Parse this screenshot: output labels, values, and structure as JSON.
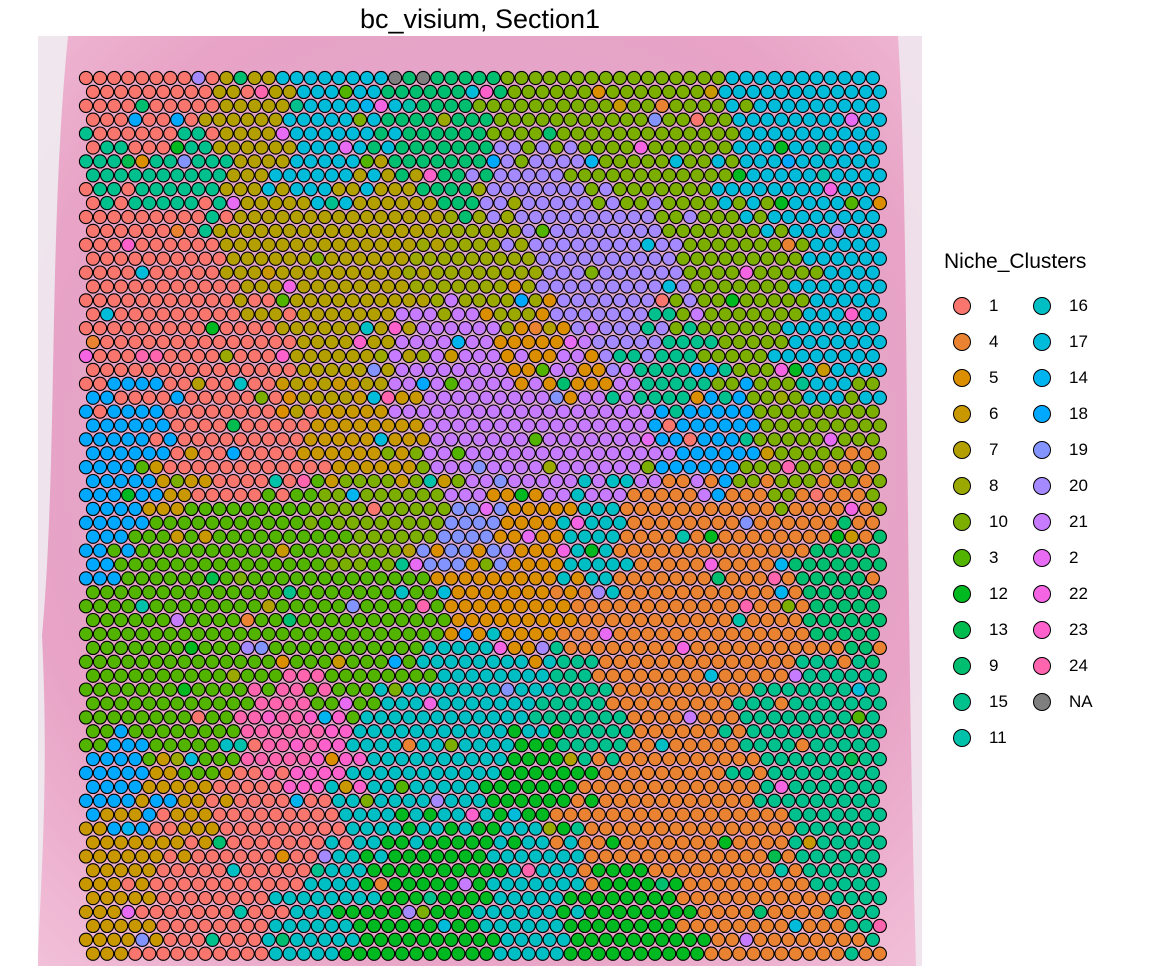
{
  "title": "bc_visium, Section1",
  "legend": {
    "title": "Niche_Clusters",
    "columns": [
      [
        {
          "label": "1",
          "color": "#F8766D"
        },
        {
          "label": "4",
          "color": "#EA8331"
        },
        {
          "label": "5",
          "color": "#DB8E00"
        },
        {
          "label": "6",
          "color": "#C99800"
        },
        {
          "label": "7",
          "color": "#B3A000"
        },
        {
          "label": "8",
          "color": "#9AA800"
        },
        {
          "label": "10",
          "color": "#7CAE00"
        },
        {
          "label": "3",
          "color": "#53B400"
        },
        {
          "label": "12",
          "color": "#00B81F"
        },
        {
          "label": "13",
          "color": "#00BB4E"
        },
        {
          "label": "9",
          "color": "#00BE70"
        },
        {
          "label": "15",
          "color": "#00C08E"
        },
        {
          "label": "11",
          "color": "#00C1AA"
        }
      ],
      [
        {
          "label": "16",
          "color": "#00BFC4"
        },
        {
          "label": "17",
          "color": "#00BBDA"
        },
        {
          "label": "14",
          "color": "#00B4EF"
        },
        {
          "label": "18",
          "color": "#00A9FF"
        },
        {
          "label": "19",
          "color": "#8494FF"
        },
        {
          "label": "20",
          "color": "#A58AFF"
        },
        {
          "label": "21",
          "color": "#C77CFF"
        },
        {
          "label": "2",
          "color": "#E76BF3"
        },
        {
          "label": "22",
          "color": "#F564E3"
        },
        {
          "label": "23",
          "color": "#FF61CC"
        },
        {
          "label": "24",
          "color": "#FF65AE"
        },
        {
          "label": "NA",
          "color": "#7F7F7F"
        }
      ]
    ]
  },
  "chart_data": {
    "type": "scatter",
    "title": "bc_visium, Section1",
    "xlabel": "",
    "ylabel": "",
    "grid": false,
    "legend_position": "right",
    "background": "H&E tissue image",
    "spot_grid": {
      "rows": 64,
      "cols": 57,
      "layout": "hexagonal"
    },
    "series_label": "Niche_Clusters",
    "regions": [
      {
        "cluster": "1",
        "cx": 0.06,
        "cy": 0.05,
        "r": 0.06
      },
      {
        "cluster": "1",
        "cx": 0.08,
        "cy": 0.2,
        "r": 0.09
      },
      {
        "cluster": "1",
        "cx": 0.05,
        "cy": 0.3,
        "r": 0.07
      },
      {
        "cluster": "1",
        "cx": 0.2,
        "cy": 0.3,
        "r": 0.08
      },
      {
        "cluster": "1",
        "cx": 0.18,
        "cy": 0.42,
        "r": 0.1
      },
      {
        "cluster": "1",
        "cx": 0.23,
        "cy": 0.86,
        "r": 0.07
      },
      {
        "cluster": "1",
        "cx": 0.12,
        "cy": 0.92,
        "r": 0.05
      },
      {
        "cluster": "15",
        "cx": 0.05,
        "cy": 0.1,
        "r": 0.05
      },
      {
        "cluster": "15",
        "cx": 0.12,
        "cy": 0.12,
        "r": 0.05
      },
      {
        "cluster": "7",
        "cx": 0.22,
        "cy": 0.05,
        "r": 0.05
      },
      {
        "cluster": "17",
        "cx": 0.3,
        "cy": 0.07,
        "r": 0.07
      },
      {
        "cluster": "9",
        "cx": 0.45,
        "cy": 0.07,
        "r": 0.07
      },
      {
        "cluster": "10",
        "cx": 0.56,
        "cy": 0.04,
        "r": 0.05
      },
      {
        "cluster": "7",
        "cx": 0.38,
        "cy": 0.14,
        "r": 0.06
      },
      {
        "cluster": "10",
        "cx": 0.72,
        "cy": 0.08,
        "r": 0.08
      },
      {
        "cluster": "17",
        "cx": 0.92,
        "cy": 0.1,
        "r": 0.1
      },
      {
        "cluster": "20",
        "cx": 0.55,
        "cy": 0.14,
        "r": 0.06
      },
      {
        "cluster": "8",
        "cx": 0.5,
        "cy": 0.21,
        "r": 0.07
      },
      {
        "cluster": "7",
        "cx": 0.24,
        "cy": 0.22,
        "r": 0.08
      },
      {
        "cluster": "7",
        "cx": 0.32,
        "cy": 0.3,
        "r": 0.09
      },
      {
        "cluster": "6",
        "cx": 0.33,
        "cy": 0.4,
        "r": 0.07
      },
      {
        "cluster": "20",
        "cx": 0.68,
        "cy": 0.22,
        "r": 0.08
      },
      {
        "cluster": "10",
        "cx": 0.82,
        "cy": 0.24,
        "r": 0.09
      },
      {
        "cluster": "17",
        "cx": 0.93,
        "cy": 0.3,
        "r": 0.06
      },
      {
        "cluster": "21",
        "cx": 0.46,
        "cy": 0.32,
        "r": 0.07
      },
      {
        "cluster": "21",
        "cx": 0.6,
        "cy": 0.4,
        "r": 0.09
      },
      {
        "cluster": "5",
        "cx": 0.56,
        "cy": 0.3,
        "r": 0.04
      },
      {
        "cluster": "5",
        "cx": 0.63,
        "cy": 0.35,
        "r": 0.035
      },
      {
        "cluster": "15",
        "cx": 0.74,
        "cy": 0.33,
        "r": 0.05
      },
      {
        "cluster": "18",
        "cx": 0.8,
        "cy": 0.4,
        "r": 0.06
      },
      {
        "cluster": "10",
        "cx": 0.9,
        "cy": 0.42,
        "r": 0.07
      },
      {
        "cluster": "18",
        "cx": 0.05,
        "cy": 0.46,
        "r": 0.07
      },
      {
        "cluster": "18",
        "cx": 0.06,
        "cy": 0.38,
        "r": 0.05
      },
      {
        "cluster": "3",
        "cx": 0.2,
        "cy": 0.56,
        "r": 0.12
      },
      {
        "cluster": "3",
        "cx": 0.12,
        "cy": 0.7,
        "r": 0.1
      },
      {
        "cluster": "3",
        "cx": 0.35,
        "cy": 0.62,
        "r": 0.08
      },
      {
        "cluster": "10",
        "cx": 0.36,
        "cy": 0.5,
        "r": 0.06
      },
      {
        "cluster": "6",
        "cx": 0.12,
        "cy": 0.48,
        "r": 0.04
      },
      {
        "cluster": "5",
        "cx": 0.56,
        "cy": 0.52,
        "r": 0.06
      },
      {
        "cluster": "5",
        "cx": 0.52,
        "cy": 0.6,
        "r": 0.06
      },
      {
        "cluster": "19",
        "cx": 0.5,
        "cy": 0.52,
        "r": 0.04
      },
      {
        "cluster": "16",
        "cx": 0.64,
        "cy": 0.52,
        "r": 0.05
      },
      {
        "cluster": "4",
        "cx": 0.8,
        "cy": 0.58,
        "r": 0.11
      },
      {
        "cluster": "4",
        "cx": 0.72,
        "cy": 0.66,
        "r": 0.08
      },
      {
        "cluster": "4",
        "cx": 0.76,
        "cy": 0.82,
        "r": 0.08
      },
      {
        "cluster": "4",
        "cx": 0.66,
        "cy": 0.86,
        "r": 0.05
      },
      {
        "cluster": "9",
        "cx": 0.94,
        "cy": 0.58,
        "r": 0.05
      },
      {
        "cluster": "15",
        "cx": 0.9,
        "cy": 0.76,
        "r": 0.07
      },
      {
        "cluster": "4",
        "cx": 0.94,
        "cy": 0.48,
        "r": 0.04
      },
      {
        "cluster": "16",
        "cx": 0.5,
        "cy": 0.72,
        "r": 0.08
      },
      {
        "cluster": "16",
        "cx": 0.4,
        "cy": 0.8,
        "r": 0.08
      },
      {
        "cluster": "15",
        "cx": 0.62,
        "cy": 0.72,
        "r": 0.05
      },
      {
        "cluster": "12",
        "cx": 0.56,
        "cy": 0.79,
        "r": 0.06
      },
      {
        "cluster": "12",
        "cx": 0.43,
        "cy": 0.92,
        "r": 0.07
      },
      {
        "cluster": "12",
        "cx": 0.68,
        "cy": 0.94,
        "r": 0.05
      },
      {
        "cluster": "16",
        "cx": 0.56,
        "cy": 0.92,
        "r": 0.05
      },
      {
        "cluster": "24",
        "cx": 0.24,
        "cy": 0.73,
        "r": 0.05
      },
      {
        "cluster": "23",
        "cx": 0.3,
        "cy": 0.78,
        "r": 0.04
      },
      {
        "cluster": "24",
        "cx": 0.1,
        "cy": 0.72,
        "r": 0.03
      },
      {
        "cluster": "18",
        "cx": 0.06,
        "cy": 0.78,
        "r": 0.05
      },
      {
        "cluster": "6",
        "cx": 0.05,
        "cy": 0.9,
        "r": 0.05
      },
      {
        "cluster": "6",
        "cx": 0.14,
        "cy": 0.82,
        "r": 0.04
      },
      {
        "cluster": "16",
        "cx": 0.3,
        "cy": 0.92,
        "r": 0.05
      }
    ]
  }
}
